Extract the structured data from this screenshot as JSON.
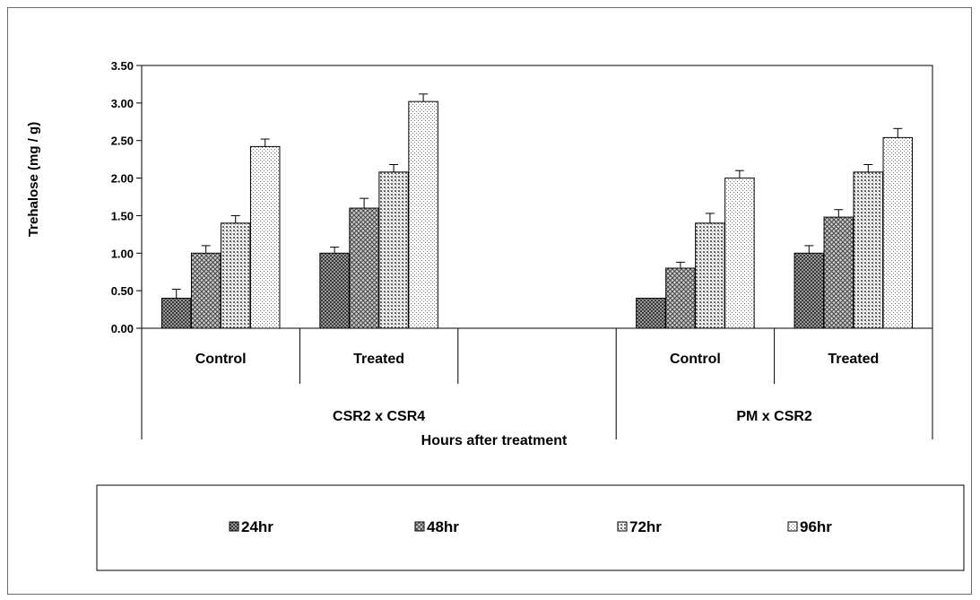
{
  "chart_data": {
    "type": "bar",
    "ylabel": "Trehalose (mg / g)",
    "xlabel": "Hours after treatment",
    "ylim": [
      0,
      3.5
    ],
    "yticks": [
      "0.00",
      "0.50",
      "1.00",
      "1.50",
      "2.00",
      "2.50",
      "3.00",
      "3.50"
    ],
    "categories": [
      "Control",
      "Treated",
      "",
      "Control",
      "Treated"
    ],
    "groups": [
      {
        "label": "CSR2 x CSR4",
        "categories": [
          0,
          1,
          2
        ]
      },
      {
        "label": "PM x CSR2",
        "categories": [
          3,
          4
        ]
      }
    ],
    "series": [
      {
        "name": "24hr",
        "values": [
          0.4,
          1.0,
          null,
          0.4,
          1.0
        ],
        "errors": [
          0.12,
          0.08,
          null,
          0.0,
          0.1
        ],
        "pattern": "dark"
      },
      {
        "name": "48hr",
        "values": [
          1.0,
          1.6,
          null,
          0.8,
          1.48
        ],
        "errors": [
          0.1,
          0.13,
          null,
          0.08,
          0.1
        ],
        "pattern": "cross"
      },
      {
        "name": "72hr",
        "values": [
          1.4,
          2.08,
          null,
          1.4,
          2.08
        ],
        "errors": [
          0.1,
          0.1,
          null,
          0.13,
          0.1
        ],
        "pattern": "dots"
      },
      {
        "name": "96hr",
        "values": [
          2.42,
          3.02,
          null,
          2.0,
          2.54
        ],
        "errors": [
          0.1,
          0.1,
          null,
          0.1,
          0.12
        ],
        "pattern": "light"
      }
    ],
    "legend_position": "bottom",
    "grid": false
  }
}
